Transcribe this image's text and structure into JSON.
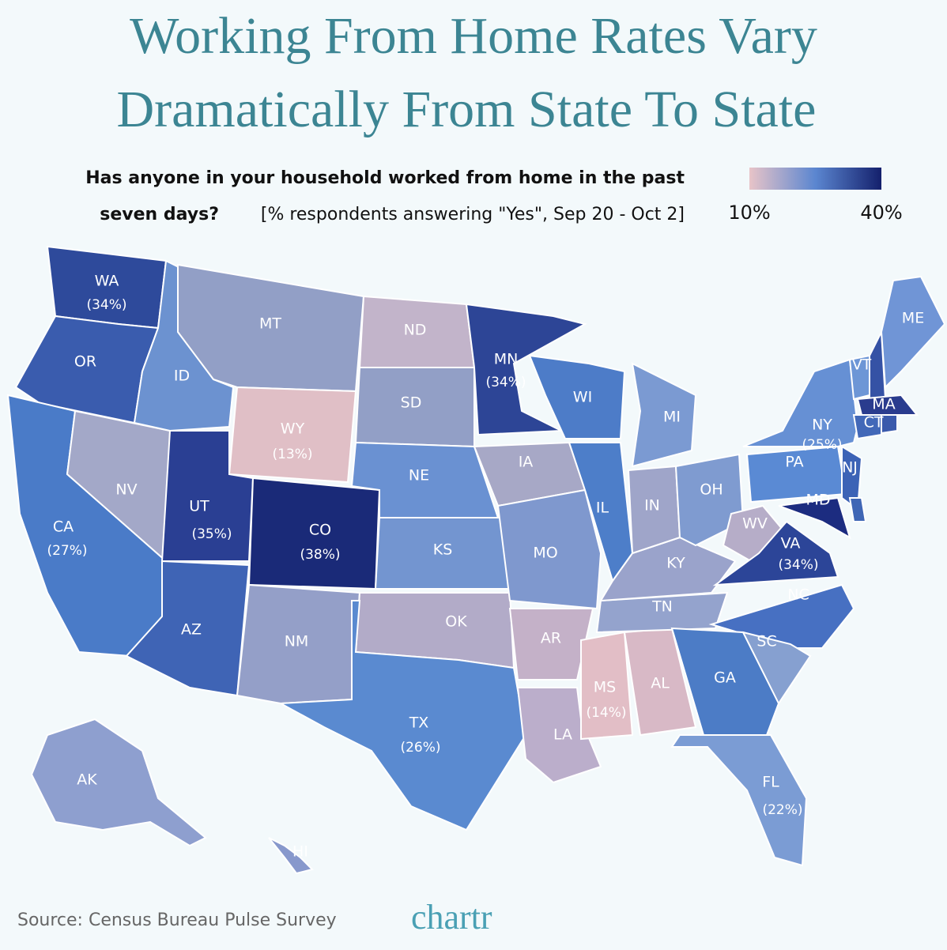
{
  "chart_data": {
    "type": "choropleth",
    "title": [
      "Working From Home Rates Vary",
      "Dramatically From State To State"
    ],
    "subtitle": [
      "Has anyone in your household worked from home in the past",
      "seven days?",
      "[% respondents answering \"Yes\", Sep 20 - Oct 2]"
    ],
    "legend": {
      "colors": [
        "#e8c4c8",
        "#5b86d0",
        "#14206c"
      ],
      "ticks": [
        {
          "value": 10,
          "label": "10%"
        },
        {
          "value": 40,
          "label": "40%"
        }
      ],
      "range": [
        10,
        40
      ]
    },
    "source": "Source: Census Bureau Pulse Survey",
    "logo": "chartr",
    "states": [
      {
        "label": "WA",
        "value": 34,
        "value_label": "(34%)",
        "color": "#2e4a9b"
      },
      {
        "label": "OR",
        "color": "#3a5cae"
      },
      {
        "label": "CA",
        "value": 27,
        "value_label": "(27%)",
        "color": "#4a7bc8"
      },
      {
        "label": "NV",
        "color": "#a3a8c8"
      },
      {
        "label": "ID",
        "color": "#6c92d0"
      },
      {
        "label": "MT",
        "color": "#929fc6"
      },
      {
        "label": "WY",
        "value": 13,
        "value_label": "(13%)",
        "color": "#e0bfc6"
      },
      {
        "label": "UT",
        "value": 35,
        "value_label": "(35%)",
        "color": "#2a3f93"
      },
      {
        "label": "CO",
        "value": 38,
        "value_label": "(38%)",
        "color": "#1a2a78"
      },
      {
        "label": "AZ",
        "color": "#3f64b5"
      },
      {
        "label": "NM",
        "color": "#949fc8"
      },
      {
        "label": "ND",
        "color": "#c2b4ca"
      },
      {
        "label": "SD",
        "color": "#929fc6"
      },
      {
        "label": "NE",
        "color": "#6a91d2"
      },
      {
        "label": "KS",
        "color": "#7395d0"
      },
      {
        "label": "OK",
        "color": "#b2abc8"
      },
      {
        "label": "TX",
        "value": 26,
        "value_label": "(26%)",
        "color": "#5a8ad0"
      },
      {
        "label": "MN",
        "value": 34,
        "value_label": "(34%)",
        "color": "#2d4596"
      },
      {
        "label": "IA",
        "color": "#a7a8c6"
      },
      {
        "label": "MO",
        "color": "#7f98ce"
      },
      {
        "label": "AR",
        "color": "#c4b1c8"
      },
      {
        "label": "LA",
        "color": "#bbaecb"
      },
      {
        "label": "WI",
        "color": "#4d7cc8"
      },
      {
        "label": "IL",
        "color": "#4d7ec9"
      },
      {
        "label": "MS",
        "value": 14,
        "value_label": "(14%)",
        "color": "#e2bec6"
      },
      {
        "label": "AL",
        "color": "#d8b9c6"
      },
      {
        "label": "TN",
        "color": "#94a3cd"
      },
      {
        "label": "KY",
        "color": "#9aa3cb"
      },
      {
        "label": "IN",
        "color": "#9fa5c9"
      },
      {
        "label": "OH",
        "color": "#7f9bd0"
      },
      {
        "label": "MI",
        "color": "#7b9ad2"
      },
      {
        "label": "WV",
        "color": "#b6adc8"
      },
      {
        "label": "VA",
        "value": 34,
        "value_label": "(34%)",
        "color": "#2c4598"
      },
      {
        "label": "NC",
        "color": "#4770c2"
      },
      {
        "label": "SC",
        "color": "#86a0d0"
      },
      {
        "label": "GA",
        "color": "#4c7cc6"
      },
      {
        "label": "FL",
        "value": 22,
        "value_label": "(22%)",
        "color": "#7b9cd4"
      },
      {
        "label": "PA",
        "color": "#5a8ad4"
      },
      {
        "label": "NY",
        "value": 25,
        "value_label": "(25%)",
        "color": "#6690d4"
      },
      {
        "label": "NJ",
        "color": "#3c63b6"
      },
      {
        "label": "MD",
        "color": "#1c2c80"
      },
      {
        "label": null,
        "color": "#3f66b5"
      },
      {
        "label": "VT",
        "color": "#6d96d6"
      },
      {
        "label": null,
        "color": "#3552a5"
      },
      {
        "label": "ME",
        "color": "#7095d6"
      },
      {
        "label": "MA",
        "color": "#2a3c8e"
      },
      {
        "label": "CT",
        "color": "#4268b8"
      },
      {
        "label": null,
        "color": "#3a5aac"
      },
      {
        "label": "AK",
        "color": "#8e9fcf"
      },
      {
        "label": "HI",
        "color": "#8798cc"
      }
    ]
  }
}
